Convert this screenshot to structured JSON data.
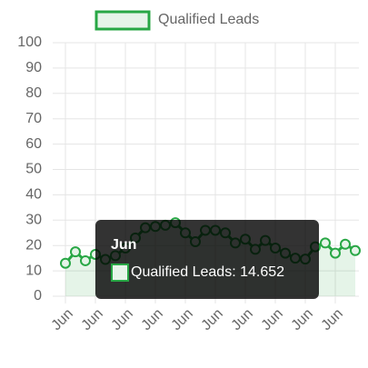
{
  "chart_data": {
    "type": "line",
    "categories": [
      "Jun",
      null,
      null,
      "Jun",
      null,
      null,
      "Jun",
      null,
      null,
      "Jun",
      null,
      null,
      "Jun",
      null,
      null,
      "Jun",
      null,
      null,
      "Jun",
      null,
      null,
      "Jun",
      null,
      null,
      "Jun",
      null,
      null,
      "Jun",
      null,
      null
    ],
    "series": [
      {
        "name": "Qualified Leads",
        "color": "#28a745",
        "values": [
          13,
          17.5,
          14,
          16.5,
          14.5,
          16,
          19,
          23,
          27,
          27.5,
          28,
          29,
          25,
          21.5,
          26,
          26,
          25,
          21,
          22.5,
          18.5,
          22,
          19,
          17,
          15,
          14.652,
          19.5,
          21,
          17,
          20.5,
          18
        ]
      }
    ],
    "ylim": [
      0,
      100
    ],
    "yticks": [
      0,
      10,
      20,
      30,
      40,
      50,
      60,
      70,
      80,
      90,
      100
    ],
    "grid": true,
    "legend": "top",
    "tooltip": {
      "title": "Jun",
      "label": "Qualified Leads: 14.652"
    }
  }
}
